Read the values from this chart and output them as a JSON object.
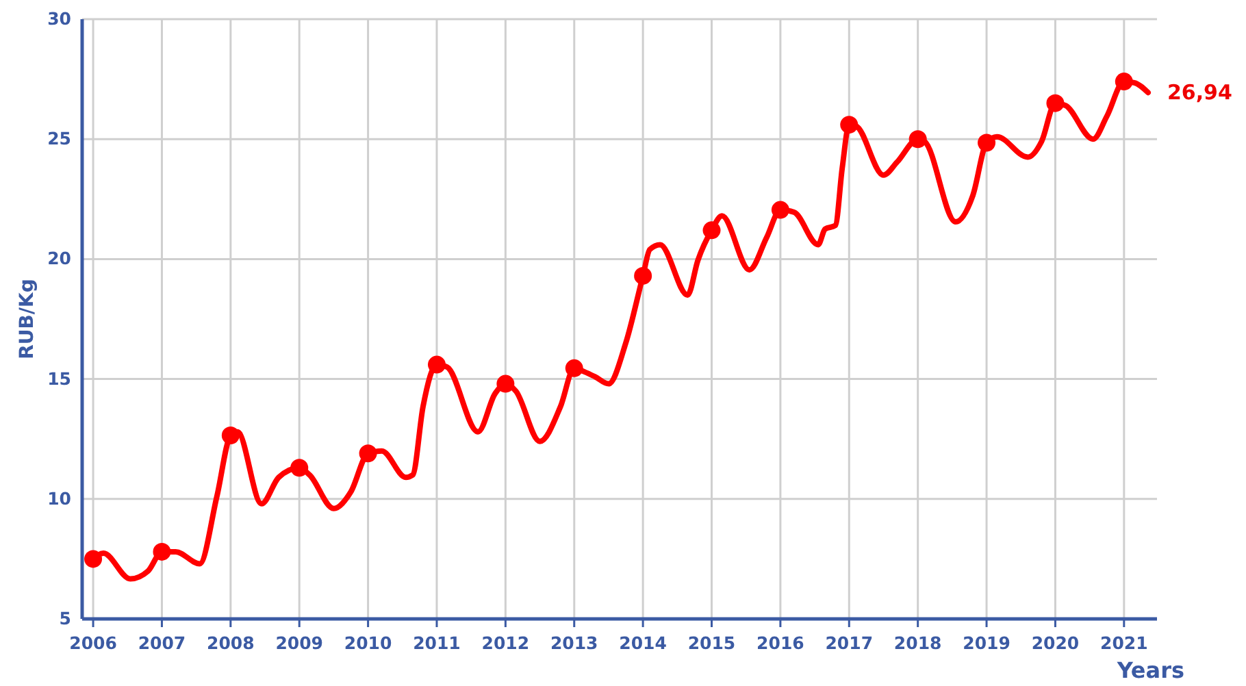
{
  "chart_data": {
    "type": "line",
    "xlabel": "Years",
    "ylabel": "RUB/Kg",
    "xlim": [
      2005.84,
      2021.48
    ],
    "ylim": [
      5,
      30
    ],
    "xticks": [
      2006,
      2007,
      2008,
      2009,
      2010,
      2011,
      2012,
      2013,
      2014,
      2015,
      2016,
      2017,
      2018,
      2019,
      2020,
      2021
    ],
    "yticks": [
      5,
      10,
      15,
      20,
      25,
      30
    ],
    "grid": true,
    "line_style": "solid",
    "series": [
      {
        "type": "line",
        "color": "#ff0000",
        "marker": "none",
        "x": [
          2006,
          2006.15,
          2006.54,
          2006.8,
          2007,
          2007.2,
          2007.55,
          2007.8,
          2008,
          2008.1,
          2008.45,
          2008.7,
          2009,
          2009.15,
          2009.5,
          2009.75,
          2010,
          2010.2,
          2010.55,
          2010.65,
          2010.8,
          2011,
          2011.15,
          2011.6,
          2011.85,
          2012,
          2012.15,
          2012.5,
          2012.8,
          2013,
          2013.15,
          2013.3,
          2013.5,
          2013.75,
          2014,
          2014.1,
          2014.25,
          2014.65,
          2014.8,
          2015,
          2015.15,
          2015.55,
          2015.8,
          2016,
          2016.2,
          2016.55,
          2016.65,
          2016.8,
          2016.9,
          2017,
          2017.1,
          2017.5,
          2017.7,
          2018,
          2018.1,
          2018.55,
          2018.8,
          2019,
          2019.15,
          2019.6,
          2019.8,
          2020,
          2020.15,
          2020.55,
          2020.75,
          2021,
          2021.15,
          2021.35
        ],
        "values": [
          7.5,
          7.74,
          6.67,
          7.0,
          7.8,
          7.8,
          7.3,
          10.1,
          12.65,
          12.8,
          9.8,
          10.9,
          11.3,
          11.0,
          9.6,
          10.3,
          11.9,
          12.0,
          10.9,
          11.0,
          13.85,
          15.6,
          15.5,
          12.8,
          14.4,
          14.8,
          14.5,
          12.4,
          13.85,
          15.45,
          15.3,
          15.1,
          14.8,
          16.5,
          19.3,
          20.4,
          20.6,
          18.5,
          19.95,
          21.2,
          21.8,
          19.55,
          20.9,
          22.05,
          21.95,
          20.6,
          21.25,
          21.4,
          23.8,
          25.6,
          25.55,
          23.5,
          24.05,
          25.0,
          24.9,
          21.55,
          22.65,
          24.85,
          25.1,
          24.25,
          24.9,
          26.5,
          26.4,
          25.0,
          25.95,
          27.4,
          27.35,
          26.94
        ]
      },
      {
        "type": "scatter",
        "color": "#ff0000",
        "marker": "circle",
        "x": [
          2006,
          2007,
          2008,
          2009,
          2010,
          2011,
          2012,
          2013,
          2014,
          2015,
          2016,
          2017,
          2018,
          2019,
          2020,
          2021
        ],
        "values": [
          7.5,
          7.8,
          12.65,
          11.3,
          11.9,
          15.6,
          14.8,
          15.45,
          19.3,
          21.2,
          22.05,
          25.6,
          25.0,
          24.85,
          26.5,
          27.4
        ]
      }
    ],
    "annotations": [
      {
        "text": "26,94",
        "x": 2021.35,
        "y": 26.94
      }
    ]
  }
}
